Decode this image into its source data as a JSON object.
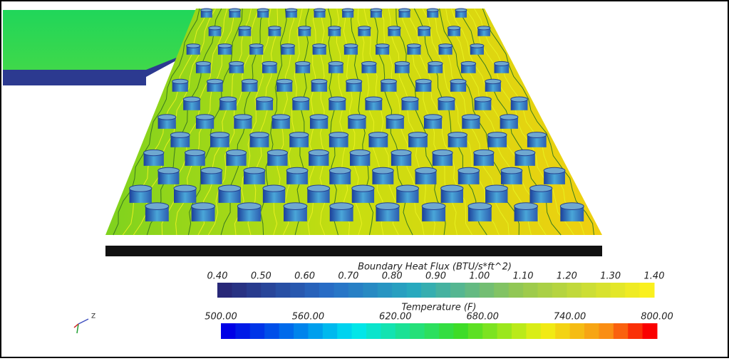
{
  "colorbars": [
    {
      "title": "Boundary Heat Flux (BTU/s*ft^2)",
      "ticks": [
        "0.40",
        "0.50",
        "0.60",
        "0.70",
        "0.80",
        "0.90",
        "1.00",
        "1.10",
        "1.20",
        "1.30",
        "1.40"
      ]
    },
    {
      "title": "Temperature (F)",
      "ticks": [
        "500.00",
        "560.00",
        "620.00",
        "680.00",
        "740.00",
        "800.00"
      ]
    }
  ],
  "triad": {
    "axis_label": "Z"
  }
}
